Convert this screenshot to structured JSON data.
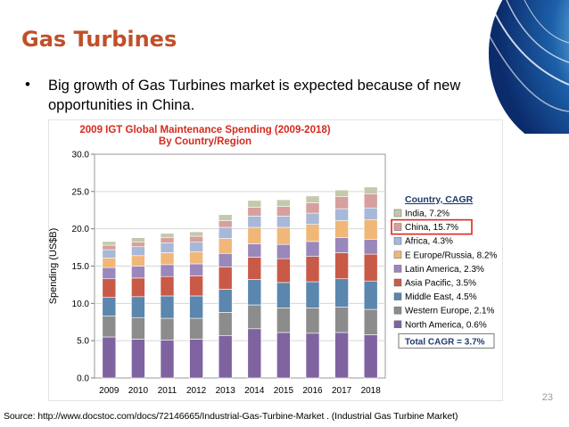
{
  "slide": {
    "title": "Gas Turbines",
    "bullet": "Big growth of Gas Turbines market is expected because of new opportunities in China.",
    "page_number": "23",
    "source": "Source: http://www.docstoc.com/docs/72146665/Industrial-Gas-Turbine-Market . (Industrial Gas Turbine Market)",
    "accent_color": "#c0502a"
  },
  "chart_data": {
    "type": "bar",
    "stacked": true,
    "title": "2009 IGT Global Maintenance Spending (2009-2018)",
    "subtitle": "By Country/Region",
    "ylabel": "Spending (US$B)",
    "xlabel": "",
    "ylim": [
      0,
      30
    ],
    "yticks": [
      "0.0",
      "5.0",
      "10.0",
      "15.0",
      "20.0",
      "25.0",
      "30.0"
    ],
    "grid": true,
    "legend_position": "right",
    "legend_title": "Country, CAGR",
    "total_label": "Total CAGR = 3.7%",
    "highlighted_series": "China, 15.7%",
    "categories": [
      "2009",
      "2010",
      "2011",
      "2012",
      "2013",
      "2014",
      "2015",
      "2016",
      "2017",
      "2018"
    ],
    "series": [
      {
        "name": "North America, 0.6%",
        "color": "#7f63a1",
        "values": [
          5.5,
          5.2,
          5.1,
          5.2,
          5.7,
          6.6,
          6.1,
          6.0,
          6.1,
          5.8
        ]
      },
      {
        "name": "Western Europe, 2.1%",
        "color": "#8c8c8c",
        "values": [
          2.8,
          2.9,
          2.9,
          2.8,
          3.1,
          3.2,
          3.3,
          3.4,
          3.4,
          3.4
        ]
      },
      {
        "name": "Middle East, 4.5%",
        "color": "#5b86ad",
        "values": [
          2.5,
          2.8,
          3.0,
          3.0,
          3.1,
          3.4,
          3.4,
          3.5,
          3.8,
          3.8
        ]
      },
      {
        "name": "Asia Pacific, 3.5%",
        "color": "#c95a47",
        "values": [
          2.5,
          2.5,
          2.6,
          2.7,
          3.0,
          3.0,
          3.2,
          3.4,
          3.5,
          3.6
        ]
      },
      {
        "name": "Latin America, 2.3%",
        "color": "#9a87bb",
        "values": [
          1.5,
          1.6,
          1.6,
          1.6,
          1.8,
          1.8,
          1.9,
          2.0,
          2.0,
          2.0
        ]
      },
      {
        "name": "E Europe/Russia, 8.2%",
        "color": "#f0b779",
        "values": [
          1.3,
          1.4,
          1.6,
          1.6,
          2.0,
          2.2,
          2.3,
          2.3,
          2.3,
          2.6
        ]
      },
      {
        "name": "Africa, 4.3%",
        "color": "#a7b8d8",
        "values": [
          1.1,
          1.2,
          1.3,
          1.3,
          1.5,
          1.5,
          1.5,
          1.5,
          1.6,
          1.6
        ]
      },
      {
        "name": "China, 15.7%",
        "color": "#d5a09d",
        "values": [
          0.6,
          0.6,
          0.7,
          0.8,
          0.9,
          1.2,
          1.3,
          1.4,
          1.6,
          1.9
        ]
      },
      {
        "name": "India, 7.2%",
        "color": "#c4c9ab",
        "values": [
          0.5,
          0.6,
          0.6,
          0.6,
          0.8,
          0.9,
          0.9,
          0.9,
          0.9,
          0.9
        ]
      }
    ]
  }
}
